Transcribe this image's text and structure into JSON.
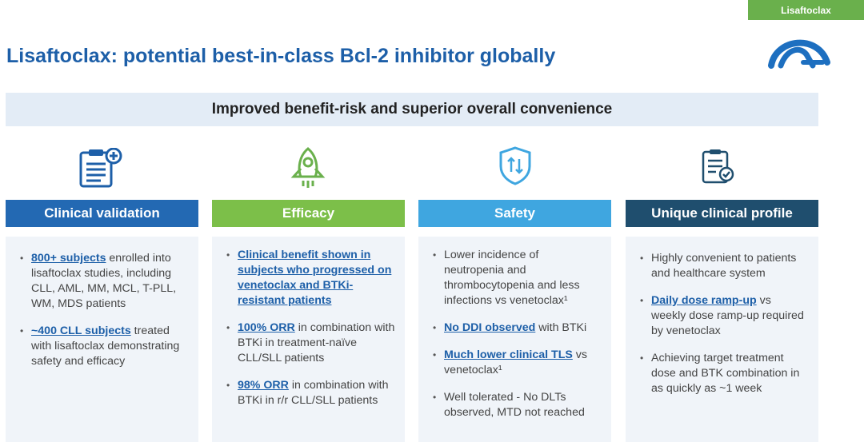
{
  "tag": "Lisaftoclax",
  "title": "Lisaftoclax: potential best-in-class Bcl-2 inhibitor globally",
  "banner": "Improved benefit-risk and superior overall convenience",
  "colors": {
    "title": "#1d5fa8",
    "tag": "#6ab04c",
    "col1": "#2369b3",
    "col2": "#7cbf49",
    "col3": "#3fa6e0",
    "col4": "#1f4e6e"
  },
  "columns": [
    {
      "heading": "Clinical validation",
      "icon": "clipboard-plus-icon",
      "bullets": [
        {
          "hl": "800+ subjects",
          "text": " enrolled into lisaftoclax studies, including CLL, AML, MM, MCL, T-PLL, WM, MDS patients"
        },
        {
          "hl": "~400 CLL subjects",
          "text": " treated with lisaftoclax demonstrating safety and efficacy"
        }
      ]
    },
    {
      "heading": "Efficacy",
      "icon": "rocket-icon",
      "bullets": [
        {
          "hl": "Clinical benefit shown in subjects who progressed on venetoclax and BTKi-resistant patients",
          "text": ""
        },
        {
          "hl": "100% ORR",
          "text": " in combination with BTKi in treatment-naïve CLL/SLL patients"
        },
        {
          "hl": "98% ORR",
          "text": " in combination with BTKi in r/r CLL/SLL patients"
        }
      ]
    },
    {
      "heading": "Safety",
      "icon": "shield-icon",
      "bullets": [
        {
          "hl": "",
          "text": "Lower incidence of neutropenia and thrombocytopenia and less infections vs venetoclax¹"
        },
        {
          "hl": "No DDI observed",
          "text": " with BTKi"
        },
        {
          "hl": "Much lower clinical TLS",
          "text": " vs venetoclax¹"
        },
        {
          "hl": "",
          "text": "Well tolerated - No DLTs observed, MTD not reached"
        }
      ]
    },
    {
      "heading": "Unique clinical profile",
      "icon": "checklist-icon",
      "bullets": [
        {
          "hl": "",
          "text": "Highly convenient to patients and healthcare system"
        },
        {
          "hl": "Daily dose ramp-up",
          "text": " vs weekly dose ramp-up required by venetoclax"
        },
        {
          "hl": "",
          "text": "Achieving target treatment dose and BTK combination in as quickly as ~1 week"
        }
      ]
    }
  ]
}
